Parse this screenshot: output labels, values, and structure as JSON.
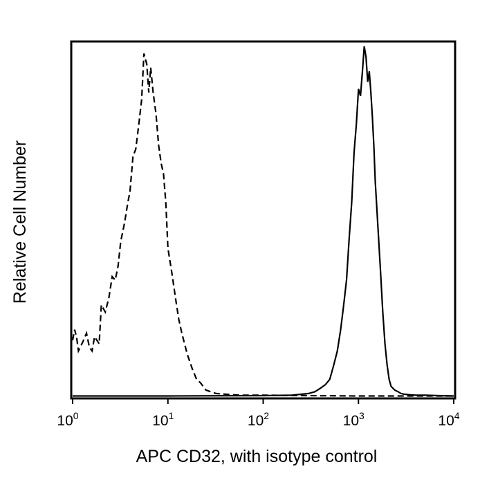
{
  "chart_data": {
    "type": "line",
    "title": "",
    "xlabel": "APC CD32, with isotype control",
    "ylabel": "Relative Cell Number",
    "xscale": "log",
    "xlim": [
      1,
      10000
    ],
    "ylim": [
      0,
      100
    ],
    "grid": false,
    "legend": "none",
    "x_ticks": [
      {
        "base": "10",
        "exp": "0",
        "value": 1
      },
      {
        "base": "10",
        "exp": "1",
        "value": 10
      },
      {
        "base": "10",
        "exp": "2",
        "value": 100
      },
      {
        "base": "10",
        "exp": "3",
        "value": 1000
      },
      {
        "base": "10",
        "exp": "4",
        "value": 10000
      }
    ],
    "y_ticks": [],
    "series": [
      {
        "style": "dashed",
        "color": "#000000",
        "x": [
          1.0,
          1.05,
          1.1,
          1.15,
          1.2,
          1.3,
          1.4,
          1.5,
          1.6,
          1.7,
          1.8,
          1.9,
          2.0,
          2.2,
          2.4,
          2.6,
          2.8,
          3.0,
          3.2,
          3.5,
          3.8,
          4.0,
          4.3,
          4.6,
          5.0,
          5.3,
          5.6,
          6.0,
          6.3,
          6.6,
          7.0,
          7.5,
          8.0,
          8.5,
          9.0,
          9.5,
          10.0,
          11.0,
          12.0,
          13.0,
          14.0,
          16.0,
          18.0,
          20.0,
          22.0,
          25.0,
          28.0,
          32.0,
          40.0,
          50.0,
          60.0,
          100.0,
          300.0,
          1000.0,
          3000.0,
          10000.0
        ],
        "y": [
          16,
          19,
          17,
          13,
          14,
          16,
          18,
          14,
          13,
          17,
          16,
          15,
          26,
          24,
          28,
          34,
          33,
          37,
          44,
          49,
          55,
          58,
          68,
          70,
          78,
          84,
          97,
          94,
          86,
          93,
          86,
          80,
          71,
          66,
          63,
          55,
          42,
          35,
          28,
          22,
          18,
          12,
          8,
          5,
          4,
          2,
          1.5,
          1,
          0.8,
          0.6,
          0.5,
          0.5,
          0.4,
          0.3,
          0.3,
          0.3
        ]
      },
      {
        "style": "solid",
        "color": "#000000",
        "x": [
          1,
          10,
          100,
          200,
          300,
          350,
          400,
          450,
          500,
          550,
          600,
          650,
          700,
          750,
          800,
          850,
          900,
          950,
          1000,
          1050,
          1100,
          1150,
          1200,
          1250,
          1300,
          1350,
          1400,
          1450,
          1500,
          1600,
          1700,
          1800,
          1900,
          2000,
          2100,
          2200,
          2400,
          2600,
          2800,
          3000,
          3500,
          4000,
          5000,
          7000,
          10000
        ],
        "y": [
          0.3,
          0.3,
          0.4,
          0.5,
          1,
          1.5,
          2.5,
          3.5,
          5,
          9,
          13,
          19,
          26,
          33,
          45,
          55,
          69,
          77,
          87,
          85,
          92,
          99,
          96,
          89,
          92,
          86,
          79,
          71,
          61,
          48,
          36,
          24,
          15,
          9,
          5,
          3,
          2,
          1.5,
          1,
          0.8,
          0.6,
          0.5,
          0.5,
          0.4,
          0.3
        ]
      }
    ]
  }
}
